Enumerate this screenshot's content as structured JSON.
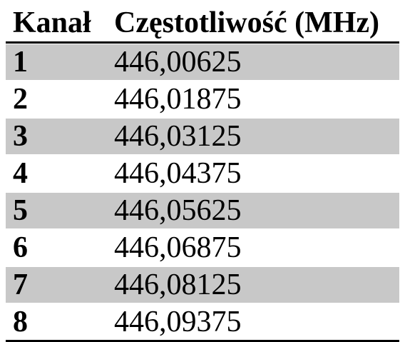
{
  "table": {
    "header": [
      "Kanał",
      "Częstotliwość (MHz)"
    ],
    "rows": [
      [
        "1",
        "446,00625"
      ],
      [
        "2",
        "446,01875"
      ],
      [
        "3",
        "446,03125"
      ],
      [
        "4",
        "446,04375"
      ],
      [
        "5",
        "446,05625"
      ],
      [
        "6",
        "446,06875"
      ],
      [
        "7",
        "446,08125"
      ],
      [
        "8",
        "446,09375"
      ]
    ]
  }
}
